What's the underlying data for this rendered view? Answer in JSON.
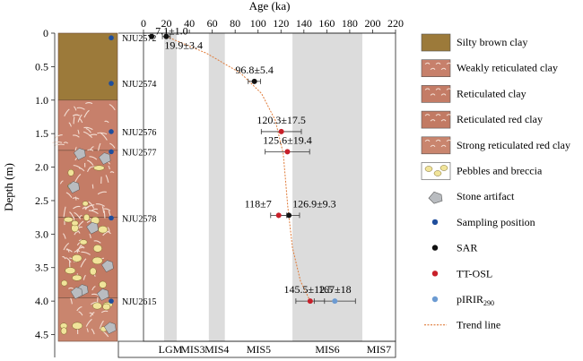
{
  "chart_data": {
    "type": "scatter",
    "xlabel": "Age (ka)",
    "ylabel": "Depth (m)",
    "xlim": [
      0,
      220
    ],
    "ylim": [
      0,
      4.6
    ],
    "x_ticks": [
      0,
      20,
      40,
      60,
      80,
      100,
      120,
      140,
      160,
      180,
      200,
      220
    ],
    "x_tick_labels": [
      "0",
      "20",
      "40",
      "60",
      "80",
      "100",
      "120",
      "140",
      "160",
      "180",
      "200",
      "220"
    ],
    "y_ticks": [
      0,
      0.5,
      1,
      1.5,
      2,
      2.5,
      3,
      3.5,
      4,
      4.5
    ],
    "y_tick_labels": [
      "0",
      "0.5",
      "1.0",
      "1.5",
      "2.0",
      "2.5",
      "3.0",
      "3.5",
      "4.0",
      "4.5"
    ],
    "x_axis_position": "top",
    "grid": false,
    "legend_position": "right",
    "mis_bands": [
      {
        "label": "LGM",
        "range": [
          18,
          29
        ],
        "shaded": true
      },
      {
        "label": "MIS3",
        "range": [
          29,
          57
        ],
        "shaded": false
      },
      {
        "label": "MIS4",
        "range": [
          57,
          71
        ],
        "shaded": true
      },
      {
        "label": "MIS5",
        "range": [
          71,
          130
        ],
        "shaded": false
      },
      {
        "label": "MIS6",
        "range": [
          130,
          191
        ],
        "shaded": true
      },
      {
        "label": "MIS7",
        "range": [
          191,
          220
        ],
        "shaded": false
      }
    ],
    "strata": [
      {
        "unit": "Silty brown clay",
        "top": 0,
        "bottom": 1.0,
        "color": "#9c7a3a"
      },
      {
        "unit": "Weakly reticulated clay",
        "top": 1.0,
        "bottom": 1.75,
        "color": "#c7806b"
      },
      {
        "unit": "Reticulated clay",
        "top": 1.75,
        "bottom": 2.75,
        "color": "#c47c66"
      },
      {
        "unit": "Reticulated red clay",
        "top": 2.75,
        "bottom": 3.95,
        "color": "#c27a63"
      },
      {
        "unit": "Strong reticulated red clay",
        "top": 3.95,
        "bottom": 4.6,
        "color": "#c9856e"
      }
    ],
    "sampling_positions": [
      {
        "label": "NJU2572",
        "depth": 0.07
      },
      {
        "label": "NJU2574",
        "depth": 0.75
      },
      {
        "label": "NJU2576",
        "depth": 1.47
      },
      {
        "label": "NJU2577",
        "depth": 1.77
      },
      {
        "label": "NJU2578",
        "depth": 2.76
      },
      {
        "label": "NJU2615",
        "depth": 4.0
      }
    ],
    "series": [
      {
        "name": "SAR",
        "color": "#111111",
        "points": [
          {
            "x": 7.1,
            "err": 1.0,
            "y": 0.05,
            "label": "7.1±1.0"
          },
          {
            "x": 19.9,
            "err": 3.4,
            "y": 0.05,
            "label": "19.9±3.4"
          },
          {
            "x": 96.8,
            "err": 5.4,
            "y": 0.72,
            "label": "96.8±5.4"
          },
          {
            "x": 126.9,
            "err": 9.3,
            "y": 2.72,
            "label": "126.9±9.3"
          }
        ]
      },
      {
        "name": "TT-OSL",
        "color": "#c8202a",
        "points": [
          {
            "x": 120.3,
            "err": 17.5,
            "y": 1.47,
            "label": "120.3±17.5"
          },
          {
            "x": 125.6,
            "err": 19.4,
            "y": 1.77,
            "label": "125.6±19.4"
          },
          {
            "x": 118,
            "err": 7,
            "y": 2.72,
            "label": "118±7"
          },
          {
            "x": 145.5,
            "err": 12.5,
            "y": 4.0,
            "label": "145.5±12.5"
          }
        ]
      },
      {
        "name": "pIRIR290",
        "color": "#6c9bd2",
        "points": [
          {
            "x": 167,
            "err": 18,
            "y": 4.0,
            "label": "167±18"
          }
        ]
      }
    ],
    "trend_line": {
      "name": "Trend line",
      "color": "#e07b39",
      "points": [
        [
          19.9,
          0.05
        ],
        [
          55,
          0.3
        ],
        [
          85,
          0.6
        ],
        [
          103,
          0.9
        ],
        [
          115,
          1.3
        ],
        [
          122,
          1.8
        ],
        [
          126,
          2.6
        ],
        [
          130,
          3.2
        ],
        [
          137,
          3.7
        ],
        [
          145.5,
          4.0
        ]
      ]
    }
  },
  "legend": {
    "items": [
      {
        "key": "silty",
        "label": "Silty brown clay",
        "kind": "swatch",
        "color": "#9c7a3a"
      },
      {
        "key": "weakly",
        "label": "Weakly reticulated clay",
        "kind": "swatch",
        "color": "#c7806b"
      },
      {
        "key": "reticulated",
        "label": "Reticulated clay",
        "kind": "swatch",
        "color": "#c47c66"
      },
      {
        "key": "red",
        "label": "Reticulated red clay",
        "kind": "swatch",
        "color": "#c27a63"
      },
      {
        "key": "strong",
        "label": "Strong reticulated red clay",
        "kind": "swatch",
        "color": "#c9856e"
      },
      {
        "key": "pebbles",
        "label": "Pebbles and breccia",
        "kind": "pebble",
        "color": "#f1e49a"
      },
      {
        "key": "stone",
        "label": "Stone artifact",
        "kind": "stone",
        "color": "#b9bcc0"
      },
      {
        "key": "sampling",
        "label": "Sampling position",
        "kind": "dot",
        "color": "#1f4e9c"
      },
      {
        "key": "sar",
        "label": "SAR",
        "kind": "dot",
        "color": "#111111"
      },
      {
        "key": "ttosl",
        "label": "TT-OSL",
        "kind": "dot",
        "color": "#c8202a"
      },
      {
        "key": "pirir",
        "label": "pIRIR",
        "sub": "290",
        "kind": "dot",
        "color": "#6c9bd2"
      },
      {
        "key": "trend",
        "label": "Trend line",
        "kind": "line",
        "color": "#e07b39"
      }
    ]
  }
}
